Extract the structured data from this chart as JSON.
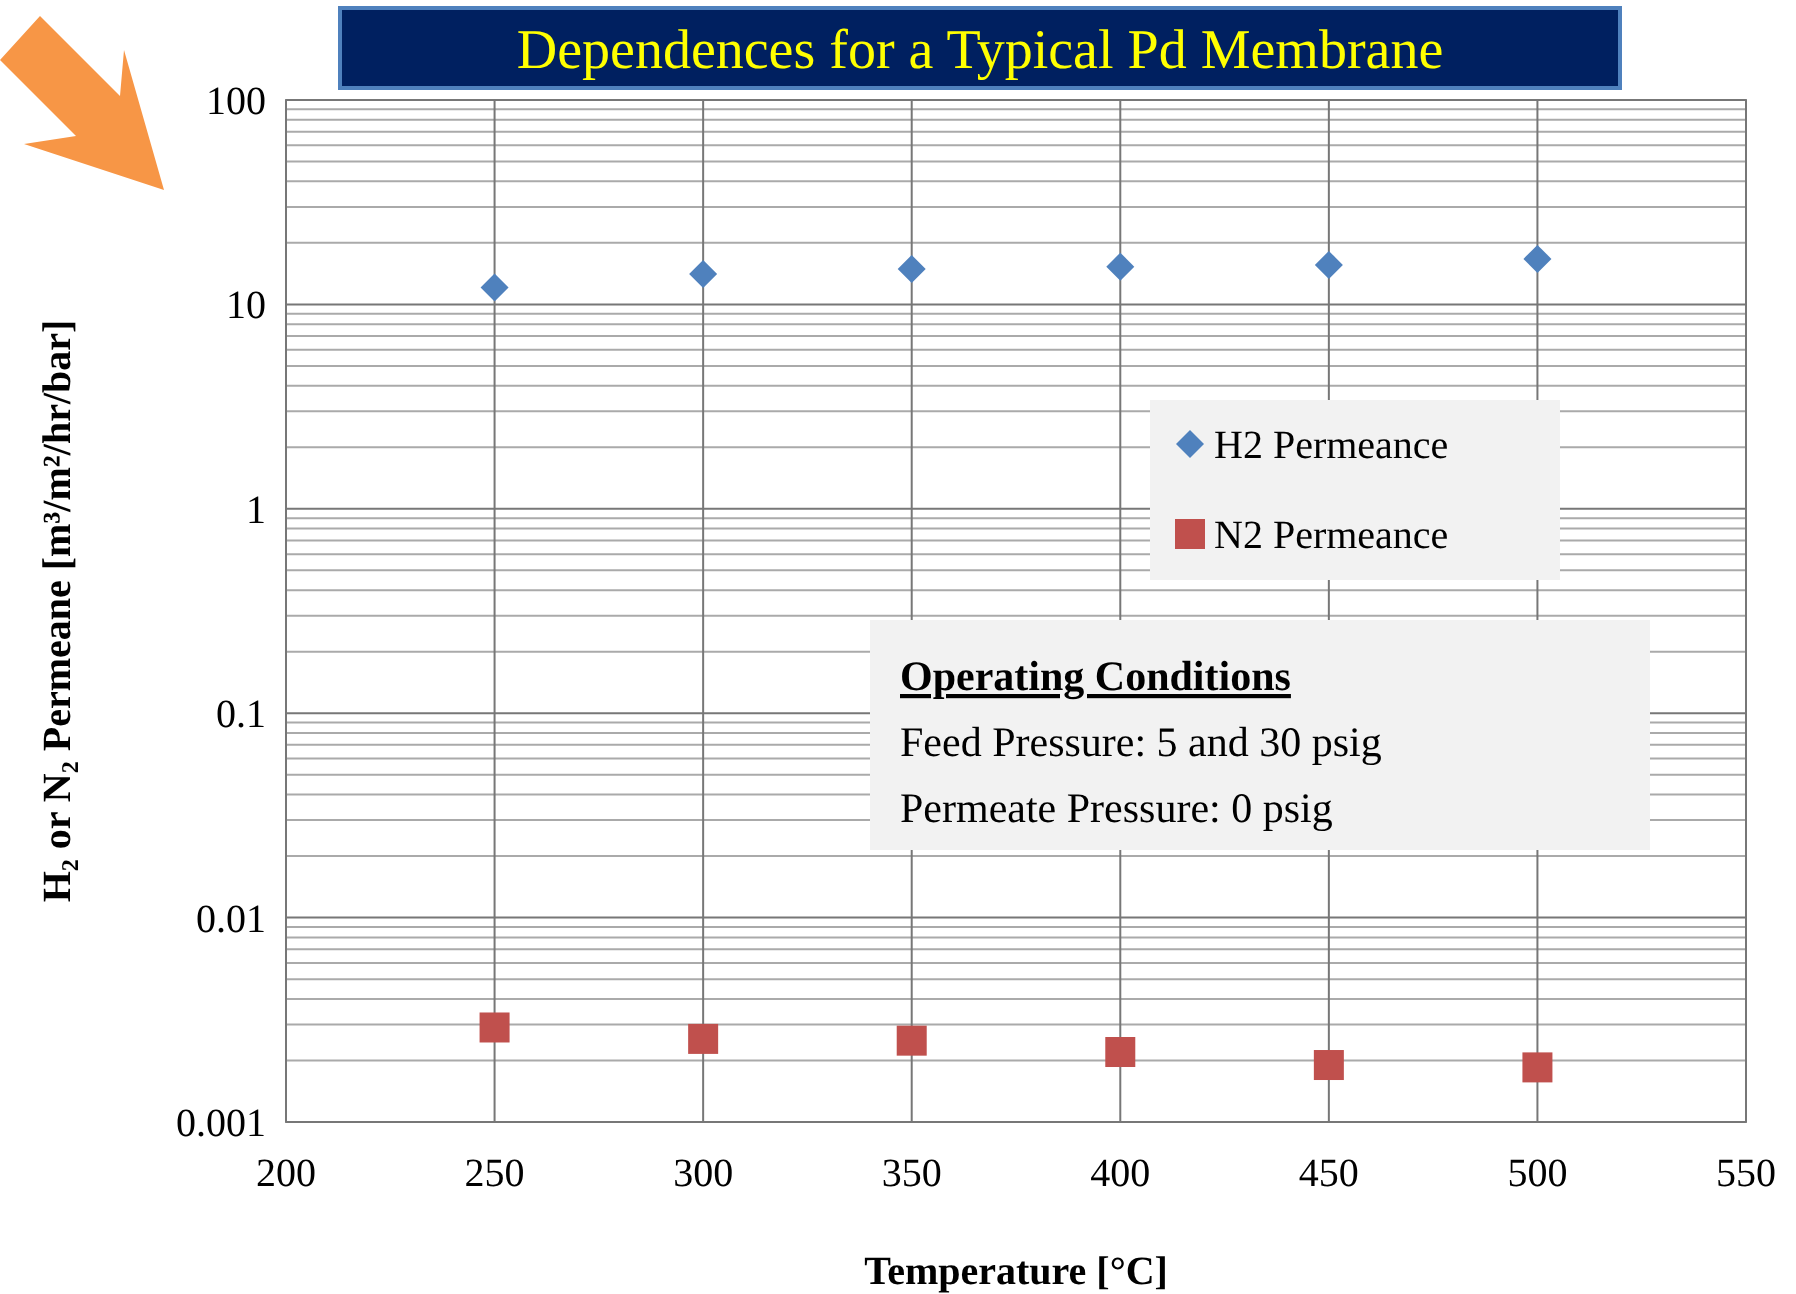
{
  "chart_data": {
    "type": "scatter",
    "title": "Dependences for a Typical Pd Membrane",
    "xlabel": "Temperature [°C]",
    "ylabel": "H₂ or N₂ Permeane [m³/m²/hr/bar]",
    "x": [
      250,
      300,
      350,
      400,
      450,
      500
    ],
    "series": [
      {
        "name": "H2 Permeance",
        "color": "#4f81bd",
        "marker": "diamond",
        "values": [
          12.1,
          14.1,
          14.9,
          15.3,
          15.6,
          16.7
        ]
      },
      {
        "name": "N2 Permeance",
        "color": "#c0504d",
        "marker": "square",
        "values": [
          0.0029,
          0.00255,
          0.0025,
          0.0022,
          0.0019,
          0.00185
        ]
      }
    ],
    "log": "y",
    "xlim": [
      200,
      550
    ],
    "xticks": [
      200,
      250,
      300,
      350,
      400,
      450,
      500,
      550
    ],
    "ylim": [
      0.001,
      100
    ],
    "yticks": [
      0.001,
      0.01,
      0.1,
      1,
      10,
      100
    ],
    "grid": true,
    "legend": "right",
    "annotations": [
      "Operating Conditions",
      "Feed Pressure:  5 and 30 psig",
      "Permeate Pressure:  0 psig"
    ]
  }
}
